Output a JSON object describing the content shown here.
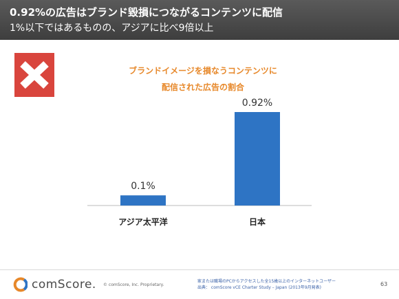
{
  "header": {
    "title": "0.92%の広告はブランド毀損につながるコンテンツに配信",
    "subtitle": "1%以下ではあるものの、アジアに比べ9倍以上"
  },
  "badge": {
    "icon": "x-mark-icon",
    "color": "#d9453d"
  },
  "chart_data": {
    "type": "bar",
    "title_lines": [
      "ブランドイメージを損なうコンテンツに",
      "配信された広告の割合"
    ],
    "categories": [
      "アジア太平洋",
      "日本"
    ],
    "values": [
      0.1,
      0.92
    ],
    "data_labels": [
      "0.1%",
      "0.92%"
    ],
    "ylim": [
      0,
      1.0
    ],
    "grid": false,
    "legend": "none",
    "bar_color": "#2e74c4",
    "title_color": "#e7882a"
  },
  "footer": {
    "logo_text": "comScore.",
    "copyright": "© comScore, Inc.   Proprietary.",
    "source_line1": "家または職場のPCからアクセスした全15歳以上のインターネットユーザー",
    "source_line2": "出典：  comScore vCE Charter Study – Japan (2013年9月発表)",
    "page_number": "63"
  }
}
